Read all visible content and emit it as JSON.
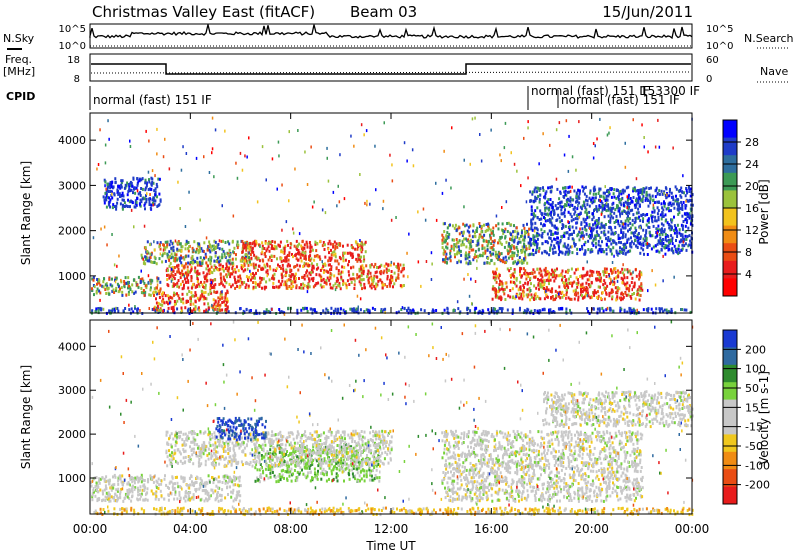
{
  "header": {
    "station": "Christmas Valley East (fitACF)",
    "beam": "Beam 03",
    "date": "15/Jun/2011"
  },
  "left_labels": {
    "nsky": "N.Sky",
    "freq_line1": "Freq.",
    "freq_line2": "[MHz]",
    "cpid": "CPID"
  },
  "right_labels": {
    "nsearch": "N.Search",
    "nave": "Nave"
  },
  "noise_panel": {
    "left_ticks": [
      "10^5",
      "10^0"
    ],
    "right_ticks": [
      "10^5",
      "10^0"
    ]
  },
  "freq_panel": {
    "left_ticks": [
      "18",
      "8"
    ],
    "right_ticks": [
      "60",
      "0"
    ]
  },
  "cpid_panel": {
    "labels": [
      "normal (fast) 151 IF",
      "normal (fast) 151 IF",
      "normal (fast) 151 IF",
      "153300 IF"
    ]
  },
  "time_axis": {
    "label": "Time UT",
    "ticks": [
      "00:00",
      "04:00",
      "08:00",
      "12:00",
      "16:00",
      "20:00",
      "00:00"
    ]
  },
  "chart_data": [
    {
      "type": "heatmap",
      "name": "Power",
      "ylabel": "Slant Range [km]",
      "yticks": [
        1000,
        2000,
        3000,
        4000
      ],
      "ylim": [
        180,
        4600
      ],
      "xlim_hours": [
        0,
        24
      ],
      "colorbar": {
        "label": "Power [dB]",
        "ticks": [
          "28",
          "24",
          "20",
          "16",
          "12",
          "8",
          "4"
        ],
        "colors": [
          "#0000ff",
          "#1f3cc8",
          "#2e6e9e",
          "#3c9a55",
          "#9bc23c",
          "#f2c31e",
          "#f08c14",
          "#ea4d14",
          "#e81c1c",
          "#ff0000"
        ]
      },
      "features": [
        {
          "t0": 0.0,
          "t1": 24.0,
          "r0": 200,
          "r1": 320,
          "level": "low"
        },
        {
          "t0": 0.0,
          "t1": 2.8,
          "r0": 600,
          "r1": 1000,
          "level": "medium"
        },
        {
          "t0": 2.5,
          "t1": 5.5,
          "r0": 250,
          "r1": 700,
          "level": "high"
        },
        {
          "t0": 3.0,
          "t1": 12.5,
          "r0": 750,
          "r1": 1300,
          "level": "high"
        },
        {
          "t0": 2.0,
          "t1": 6.5,
          "r0": 1300,
          "r1": 1800,
          "level": "medium"
        },
        {
          "t0": 6.0,
          "t1": 11.0,
          "r0": 1350,
          "r1": 1800,
          "level": "high"
        },
        {
          "t0": 0.5,
          "t1": 2.8,
          "r0": 2500,
          "r1": 3200,
          "level": "low"
        },
        {
          "t0": 14.0,
          "t1": 17.5,
          "r0": 1300,
          "r1": 2200,
          "level": "medium"
        },
        {
          "t0": 16.0,
          "t1": 22.0,
          "r0": 500,
          "r1": 1200,
          "level": "high"
        },
        {
          "t0": 17.5,
          "t1": 24.0,
          "r0": 1500,
          "r1": 3000,
          "level": "low"
        }
      ]
    },
    {
      "type": "heatmap",
      "name": "Velocity",
      "ylabel": "Slant Range [km]",
      "yticks": [
        1000,
        2000,
        3000,
        4000
      ],
      "ylim": [
        180,
        4600
      ],
      "xlim_hours": [
        0,
        24
      ],
      "colorbar": {
        "label": "Velocity [m s-1]",
        "ticks": [
          "200",
          "100",
          "50",
          "15",
          "-15",
          "-50",
          "-100",
          "-200"
        ],
        "colors": [
          "#1a3ad2",
          "#2f6aa0",
          "#2e8b2e",
          "#78d23c",
          "#c8c8c8",
          "#c8c8c8",
          "#f0c81e",
          "#f08c14",
          "#ea4d14",
          "#e81c1c"
        ]
      },
      "features": [
        {
          "t0": 0.0,
          "t1": 24.0,
          "r0": 200,
          "r1": 350,
          "level": "neg"
        },
        {
          "t0": 0.0,
          "t1": 6.0,
          "r0": 500,
          "r1": 1100,
          "level": "zero"
        },
        {
          "t0": 6.5,
          "t1": 11.5,
          "r0": 950,
          "r1": 1800,
          "level": "pos"
        },
        {
          "t0": 3.0,
          "t1": 12.0,
          "r0": 1300,
          "r1": 2100,
          "level": "zero"
        },
        {
          "t0": 14.0,
          "t1": 22.0,
          "r0": 500,
          "r1": 2100,
          "level": "zero"
        },
        {
          "t0": 5.0,
          "t1": 7.0,
          "r0": 1900,
          "r1": 2400,
          "level": "pos_strong"
        },
        {
          "t0": 18.0,
          "t1": 24.0,
          "r0": 2200,
          "r1": 3000,
          "level": "zero"
        }
      ]
    }
  ]
}
